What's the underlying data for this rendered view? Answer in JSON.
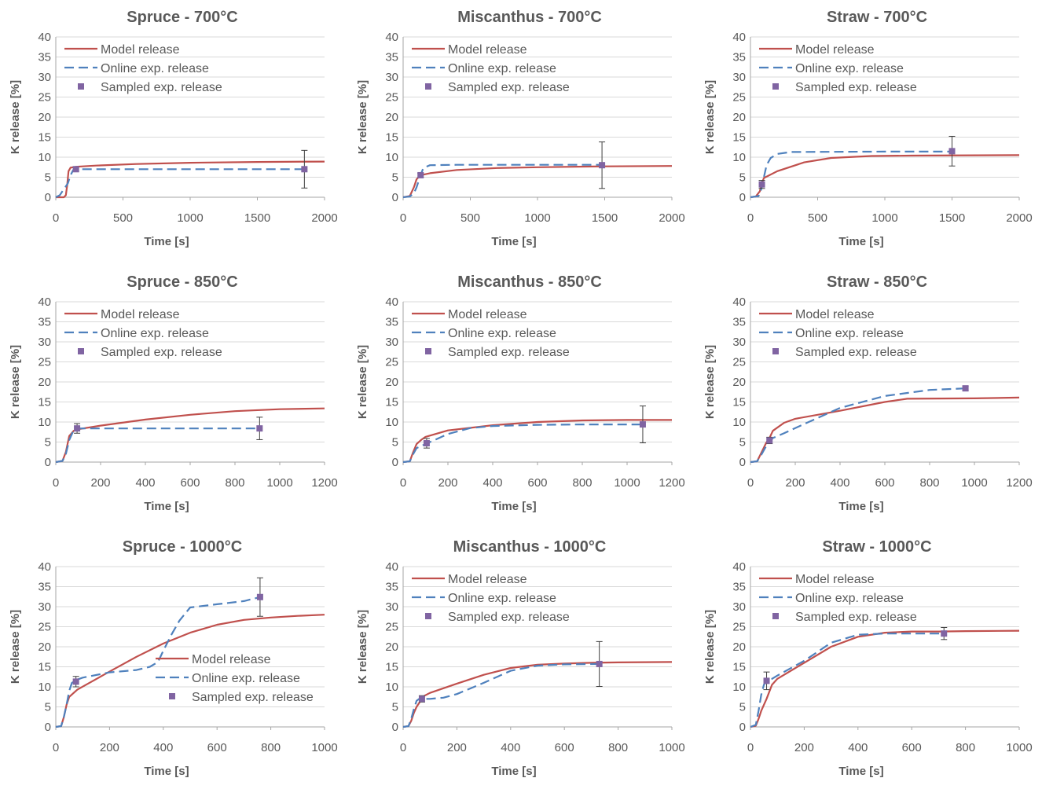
{
  "colors": {
    "model": "#c0504d",
    "online": "#4f81bd",
    "sampled": "#8064a2",
    "grid": "#d9d9d9",
    "text": "#595959"
  },
  "legend_labels": {
    "model": "Model release",
    "online": "Online exp. release",
    "sampled": "Sampled exp. release"
  },
  "chart_data": [
    {
      "type": "line",
      "title": "Spruce  - 700°C",
      "xlabel": "Time [s]",
      "ylabel": "K release [%]",
      "xlim": [
        0,
        2000
      ],
      "xticks": [
        0,
        500,
        1000,
        1500,
        2000
      ],
      "ylim": [
        0,
        40
      ],
      "yticks": [
        0,
        5,
        10,
        15,
        20,
        25,
        30,
        35,
        40
      ],
      "grid": "horizontal",
      "legend": "top-left",
      "series": [
        {
          "name": "Model release",
          "x": [
            0,
            60,
            75,
            85,
            95,
            110,
            150,
            300,
            600,
            1000,
            1500,
            2000
          ],
          "y": [
            0,
            0,
            0.5,
            3,
            6.5,
            7.4,
            7.6,
            7.9,
            8.3,
            8.6,
            8.8,
            8.9
          ]
        },
        {
          "name": "Online exp. release",
          "x": [
            0,
            30,
            50,
            70,
            90,
            110,
            130,
            150,
            300,
            1000,
            1850
          ],
          "y": [
            0,
            0.5,
            1.5,
            2.5,
            3.5,
            5.5,
            6.8,
            7.0,
            7.0,
            7.0,
            7.0
          ]
        },
        {
          "name": "Sampled exp. release",
          "x": [
            150,
            1850
          ],
          "y": [
            7.0,
            7.0
          ],
          "err": [
            0.5,
            4.7
          ]
        }
      ]
    },
    {
      "type": "line",
      "title": "Miscanthus  - 700°C",
      "xlabel": "Time [s]",
      "ylabel": "K release [%]",
      "xlim": [
        0,
        2000
      ],
      "xticks": [
        0,
        500,
        1000,
        1500,
        2000
      ],
      "ylim": [
        0,
        40
      ],
      "yticks": [
        0,
        5,
        10,
        15,
        20,
        25,
        30,
        35,
        40
      ],
      "grid": "horizontal",
      "legend": "top-left",
      "series": [
        {
          "name": "Model release",
          "x": [
            0,
            50,
            80,
            100,
            130,
            200,
            400,
            700,
            1000,
            1500,
            2000
          ],
          "y": [
            0,
            0.3,
            2.5,
            4.5,
            5.5,
            6.0,
            6.8,
            7.3,
            7.5,
            7.7,
            7.8
          ]
        },
        {
          "name": "Online exp. release",
          "x": [
            0,
            50,
            80,
            100,
            130,
            150,
            200,
            400,
            1000,
            1480
          ],
          "y": [
            0,
            0.2,
            1.0,
            2.5,
            5.5,
            7.3,
            8.0,
            8.1,
            8.1,
            8.1
          ]
        },
        {
          "name": "Sampled exp. release",
          "x": [
            130,
            1480
          ],
          "y": [
            5.5,
            8.0
          ],
          "err": [
            0.5,
            5.8
          ]
        }
      ]
    },
    {
      "type": "line",
      "title": "Straw  - 700°C",
      "xlabel": "Time [s]",
      "ylabel": "K release [%]",
      "xlim": [
        0,
        2000
      ],
      "xticks": [
        0,
        500,
        1000,
        1500,
        2000
      ],
      "ylim": [
        0,
        40
      ],
      "yticks": [
        0,
        5,
        10,
        15,
        20,
        25,
        30,
        35,
        40
      ],
      "grid": "horizontal",
      "legend": "top-left",
      "series": [
        {
          "name": "Model release",
          "x": [
            0,
            40,
            70,
            85,
            100,
            200,
            400,
            600,
            900,
            1200,
            2000
          ],
          "y": [
            0,
            0.2,
            1.5,
            3.5,
            4.8,
            6.5,
            8.7,
            9.8,
            10.3,
            10.4,
            10.5
          ]
        },
        {
          "name": "Online exp. release",
          "x": [
            0,
            60,
            80,
            100,
            120,
            150,
            200,
            300,
            1000,
            1500
          ],
          "y": [
            0,
            0.3,
            2.0,
            5.0,
            8.0,
            9.8,
            10.8,
            11.3,
            11.4,
            11.4
          ]
        },
        {
          "name": "Sampled exp. release",
          "x": [
            85,
            1500
          ],
          "y": [
            3.2,
            11.5
          ],
          "err": [
            1.0,
            3.7
          ]
        }
      ]
    },
    {
      "type": "line",
      "title": "Spruce  - 850°C",
      "xlabel": "Time [s]",
      "ylabel": "K release [%]",
      "xlim": [
        0,
        1200
      ],
      "xticks": [
        0,
        200,
        400,
        600,
        800,
        1000,
        1200
      ],
      "ylim": [
        0,
        40
      ],
      "yticks": [
        0,
        5,
        10,
        15,
        20,
        25,
        30,
        35,
        40
      ],
      "grid": "horizontal",
      "legend": "top-left",
      "series": [
        {
          "name": "Model release",
          "x": [
            0,
            30,
            45,
            60,
            80,
            100,
            200,
            400,
            600,
            800,
            1000,
            1200
          ],
          "y": [
            0,
            0.3,
            2.5,
            6.5,
            7.8,
            8.2,
            9.1,
            10.6,
            11.8,
            12.7,
            13.2,
            13.4
          ]
        },
        {
          "name": "Online exp. release",
          "x": [
            0,
            30,
            45,
            60,
            80,
            100,
            200,
            500,
            910
          ],
          "y": [
            0,
            0.3,
            2.0,
            5.5,
            8.0,
            8.4,
            8.4,
            8.4,
            8.4
          ]
        },
        {
          "name": "Sampled exp. release",
          "x": [
            95,
            910
          ],
          "y": [
            8.4,
            8.4
          ],
          "err": [
            1.2,
            2.8
          ]
        }
      ]
    },
    {
      "type": "line",
      "title": "Miscanthus  - 850°C",
      "xlabel": "Time [s]",
      "ylabel": "K release [%]",
      "xlim": [
        0,
        1200
      ],
      "xticks": [
        0,
        200,
        400,
        600,
        800,
        1000,
        1200
      ],
      "ylim": [
        0,
        40
      ],
      "yticks": [
        0,
        5,
        10,
        15,
        20,
        25,
        30,
        35,
        40
      ],
      "grid": "horizontal",
      "legend": "top-left",
      "series": [
        {
          "name": "Model release",
          "x": [
            0,
            30,
            45,
            60,
            80,
            100,
            200,
            400,
            600,
            800,
            1000,
            1200
          ],
          "y": [
            0,
            0.2,
            2.5,
            4.5,
            5.5,
            6.3,
            7.9,
            9.2,
            10.0,
            10.4,
            10.5,
            10.5
          ]
        },
        {
          "name": "Online exp. release",
          "x": [
            0,
            30,
            45,
            60,
            80,
            100,
            200,
            300,
            400,
            600,
            800,
            1070
          ],
          "y": [
            0,
            0.2,
            2.0,
            3.5,
            4.0,
            4.5,
            7.0,
            8.5,
            9.0,
            9.3,
            9.4,
            9.4
          ]
        },
        {
          "name": "Sampled exp. release",
          "x": [
            105,
            1070
          ],
          "y": [
            4.7,
            9.4
          ],
          "err": [
            1.2,
            4.6
          ]
        }
      ]
    },
    {
      "type": "line",
      "title": "Straw  - 850°C",
      "xlabel": "Time [s]",
      "ylabel": "K release [%]",
      "xlim": [
        0,
        1200
      ],
      "xticks": [
        0,
        200,
        400,
        600,
        800,
        1000,
        1200
      ],
      "ylim": [
        0,
        40
      ],
      "yticks": [
        0,
        5,
        10,
        15,
        20,
        25,
        30,
        35,
        40
      ],
      "grid": "horizontal",
      "legend": "top-left",
      "series": [
        {
          "name": "Model release",
          "x": [
            0,
            30,
            50,
            70,
            85,
            100,
            150,
            200,
            400,
            600,
            700,
            1000,
            1200
          ],
          "y": [
            0,
            0.2,
            2.5,
            4.8,
            6.0,
            7.8,
            9.8,
            10.8,
            12.8,
            15.0,
            15.8,
            15.9,
            16.1
          ]
        },
        {
          "name": "Online exp. release",
          "x": [
            0,
            30,
            50,
            70,
            85,
            100,
            150,
            200,
            400,
            600,
            800,
            960
          ],
          "y": [
            0,
            0.2,
            2.0,
            4.0,
            5.0,
            6.0,
            7.2,
            8.5,
            13.5,
            16.5,
            18.0,
            18.4
          ]
        },
        {
          "name": "Sampled exp. release",
          "x": [
            85,
            960
          ],
          "y": [
            5.4,
            18.4
          ],
          "err": [
            0.8,
            0.5
          ]
        }
      ]
    },
    {
      "type": "line",
      "title": "Spruce  - 1000°C",
      "xlabel": "Time [s]",
      "ylabel": "K release [%]",
      "xlim": [
        0,
        1000
      ],
      "xticks": [
        0,
        200,
        400,
        600,
        800,
        1000
      ],
      "ylim": [
        0,
        40
      ],
      "yticks": [
        0,
        5,
        10,
        15,
        20,
        25,
        30,
        35,
        40
      ],
      "grid": "horizontal",
      "legend": "bottom-right",
      "series": [
        {
          "name": "Model release",
          "x": [
            0,
            20,
            30,
            40,
            50,
            80,
            120,
            200,
            300,
            400,
            500,
            600,
            700,
            800,
            900,
            1000
          ],
          "y": [
            0,
            0.2,
            2.5,
            5.5,
            7.5,
            9.3,
            10.8,
            13.8,
            17.5,
            20.8,
            23.5,
            25.5,
            26.7,
            27.3,
            27.7,
            28.0
          ]
        },
        {
          "name": "Online exp. release",
          "x": [
            0,
            20,
            30,
            40,
            50,
            60,
            80,
            100,
            200,
            300,
            350,
            380,
            400,
            430,
            460,
            500,
            600,
            700,
            760
          ],
          "y": [
            0,
            0.2,
            2.5,
            5.5,
            9.0,
            11.0,
            11.8,
            12.3,
            13.6,
            14.2,
            15.0,
            16.2,
            19.0,
            23.0,
            26.5,
            29.8,
            30.6,
            31.4,
            32.4
          ]
        },
        {
          "name": "Sampled exp. release",
          "x": [
            75,
            760
          ],
          "y": [
            11.3,
            32.4
          ],
          "err": [
            1.3,
            4.8
          ]
        }
      ]
    },
    {
      "type": "line",
      "title": "Miscanthus  - 1000°C",
      "xlabel": "Time [s]",
      "ylabel": "K release [%]",
      "xlim": [
        0,
        1000
      ],
      "xticks": [
        0,
        200,
        400,
        600,
        800,
        1000
      ],
      "ylim": [
        0,
        40
      ],
      "yticks": [
        0,
        5,
        10,
        15,
        20,
        25,
        30,
        35,
        40
      ],
      "grid": "horizontal",
      "legend": "top-left",
      "series": [
        {
          "name": "Model release",
          "x": [
            0,
            20,
            30,
            40,
            50,
            60,
            70,
            80,
            100,
            200,
            300,
            400,
            500,
            600,
            700,
            800,
            1000
          ],
          "y": [
            0,
            0.2,
            1.5,
            3.5,
            5.0,
            6.0,
            7.0,
            7.8,
            8.5,
            10.8,
            13.0,
            14.7,
            15.5,
            15.8,
            16.0,
            16.1,
            16.2
          ]
        },
        {
          "name": "Online exp. release",
          "x": [
            0,
            20,
            30,
            40,
            50,
            60,
            70,
            100,
            150,
            200,
            300,
            400,
            500,
            600,
            730
          ],
          "y": [
            0,
            0.2,
            2.0,
            4.5,
            6.5,
            7.0,
            7.0,
            7.0,
            7.3,
            8.2,
            11.0,
            14.0,
            15.3,
            15.6,
            15.7
          ]
        },
        {
          "name": "Sampled exp. release",
          "x": [
            70,
            730
          ],
          "y": [
            7.0,
            15.7
          ],
          "err": [
            0.8,
            5.6
          ]
        }
      ]
    },
    {
      "type": "line",
      "title": "Straw  - 1000°C",
      "xlabel": "Time [s]",
      "ylabel": "K release [%]",
      "xlim": [
        0,
        1000
      ],
      "xticks": [
        0,
        200,
        400,
        600,
        800,
        1000
      ],
      "ylim": [
        0,
        40
      ],
      "yticks": [
        0,
        5,
        10,
        15,
        20,
        25,
        30,
        35,
        40
      ],
      "grid": "horizontal",
      "legend": "top-left",
      "series": [
        {
          "name": "Model release",
          "x": [
            0,
            20,
            30,
            40,
            60,
            80,
            100,
            200,
            300,
            400,
            500,
            600,
            700,
            800,
            1000
          ],
          "y": [
            0,
            0.3,
            2.0,
            4.0,
            7.0,
            10.5,
            12.0,
            16.0,
            20.0,
            22.5,
            23.5,
            23.8,
            23.8,
            23.9,
            24.0
          ]
        },
        {
          "name": "Online exp. release",
          "x": [
            0,
            20,
            30,
            40,
            50,
            60,
            80,
            100,
            200,
            300,
            400,
            500,
            600,
            720
          ],
          "y": [
            0,
            0.5,
            4.0,
            8.0,
            10.5,
            11.5,
            12.0,
            12.8,
            16.5,
            21.0,
            23.0,
            23.3,
            23.3,
            23.3
          ]
        },
        {
          "name": "Sampled exp. release",
          "x": [
            60,
            720
          ],
          "y": [
            11.5,
            23.3
          ],
          "err": [
            2.2,
            1.5
          ]
        }
      ]
    }
  ]
}
